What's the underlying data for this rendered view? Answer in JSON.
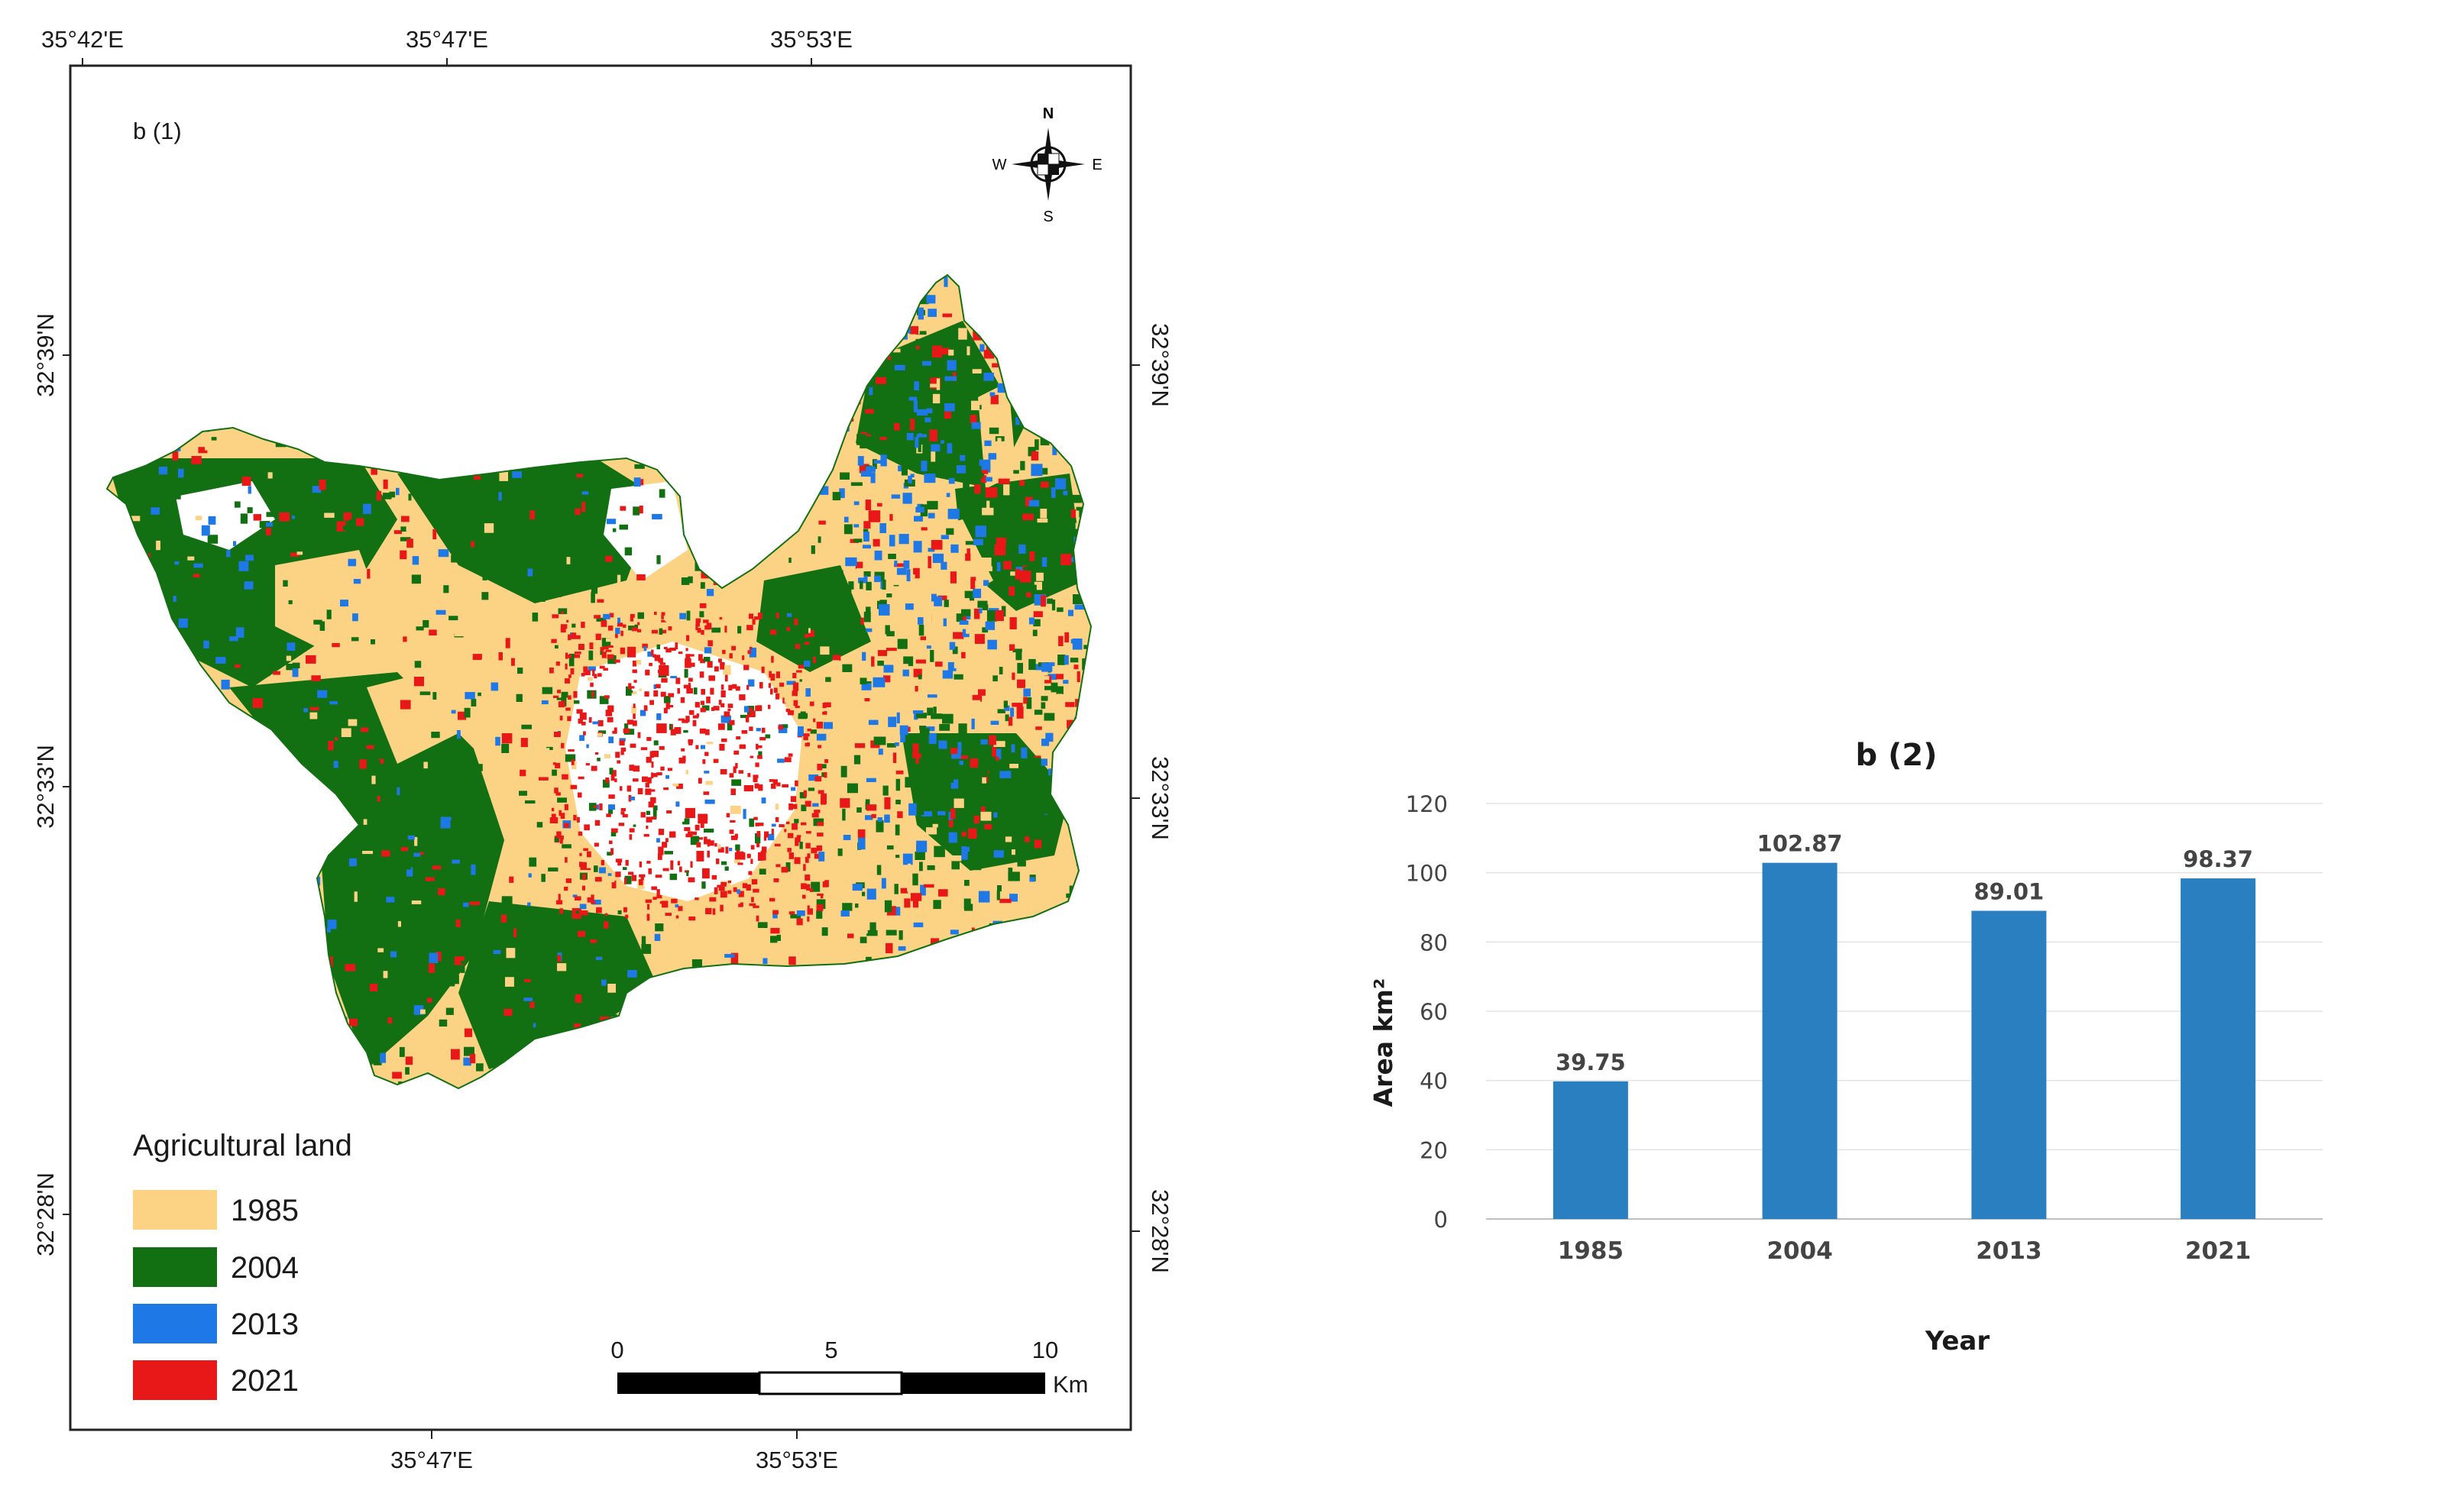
{
  "map": {
    "panel_label": "b (1)",
    "top_lon_ticks": [
      "35°42'E",
      "35°47'E",
      "35°53'E"
    ],
    "bottom_lon_ticks": [
      "35°47'E",
      "35°53'E"
    ],
    "left_lat_ticks": [
      "32°39'N",
      "32°33'N",
      "32°28'N"
    ],
    "right_lat_ticks": [
      "32°39'N",
      "32°33'N",
      "32°28'N"
    ],
    "compass": {
      "n": "N",
      "s": "S",
      "e": "E",
      "w": "W"
    },
    "legend": {
      "title": "Agricultural land",
      "items": [
        {
          "label": "1985",
          "color": "#FCD384"
        },
        {
          "label": "2004",
          "color": "#127012"
        },
        {
          "label": "2013",
          "color": "#1E78E6"
        },
        {
          "label": "2021",
          "color": "#E81818"
        }
      ]
    },
    "scale_bar": {
      "ticks": [
        "0",
        "5",
        "10"
      ],
      "unit": "Km"
    }
  },
  "chart_data": {
    "type": "bar",
    "title": "b (2)",
    "categories": [
      "1985",
      "2004",
      "2013",
      "2021"
    ],
    "values": [
      39.75,
      102.87,
      89.01,
      98.37
    ],
    "data_labels": [
      "39.75",
      "102.87",
      "89.01",
      "98.37"
    ],
    "xlabel": "Year",
    "ylabel": "Area km²",
    "ylim": [
      0,
      120
    ],
    "yticks": [
      0,
      20,
      40,
      60,
      80,
      100,
      120
    ],
    "bar_color": "#2A7FC1",
    "grid": true
  }
}
